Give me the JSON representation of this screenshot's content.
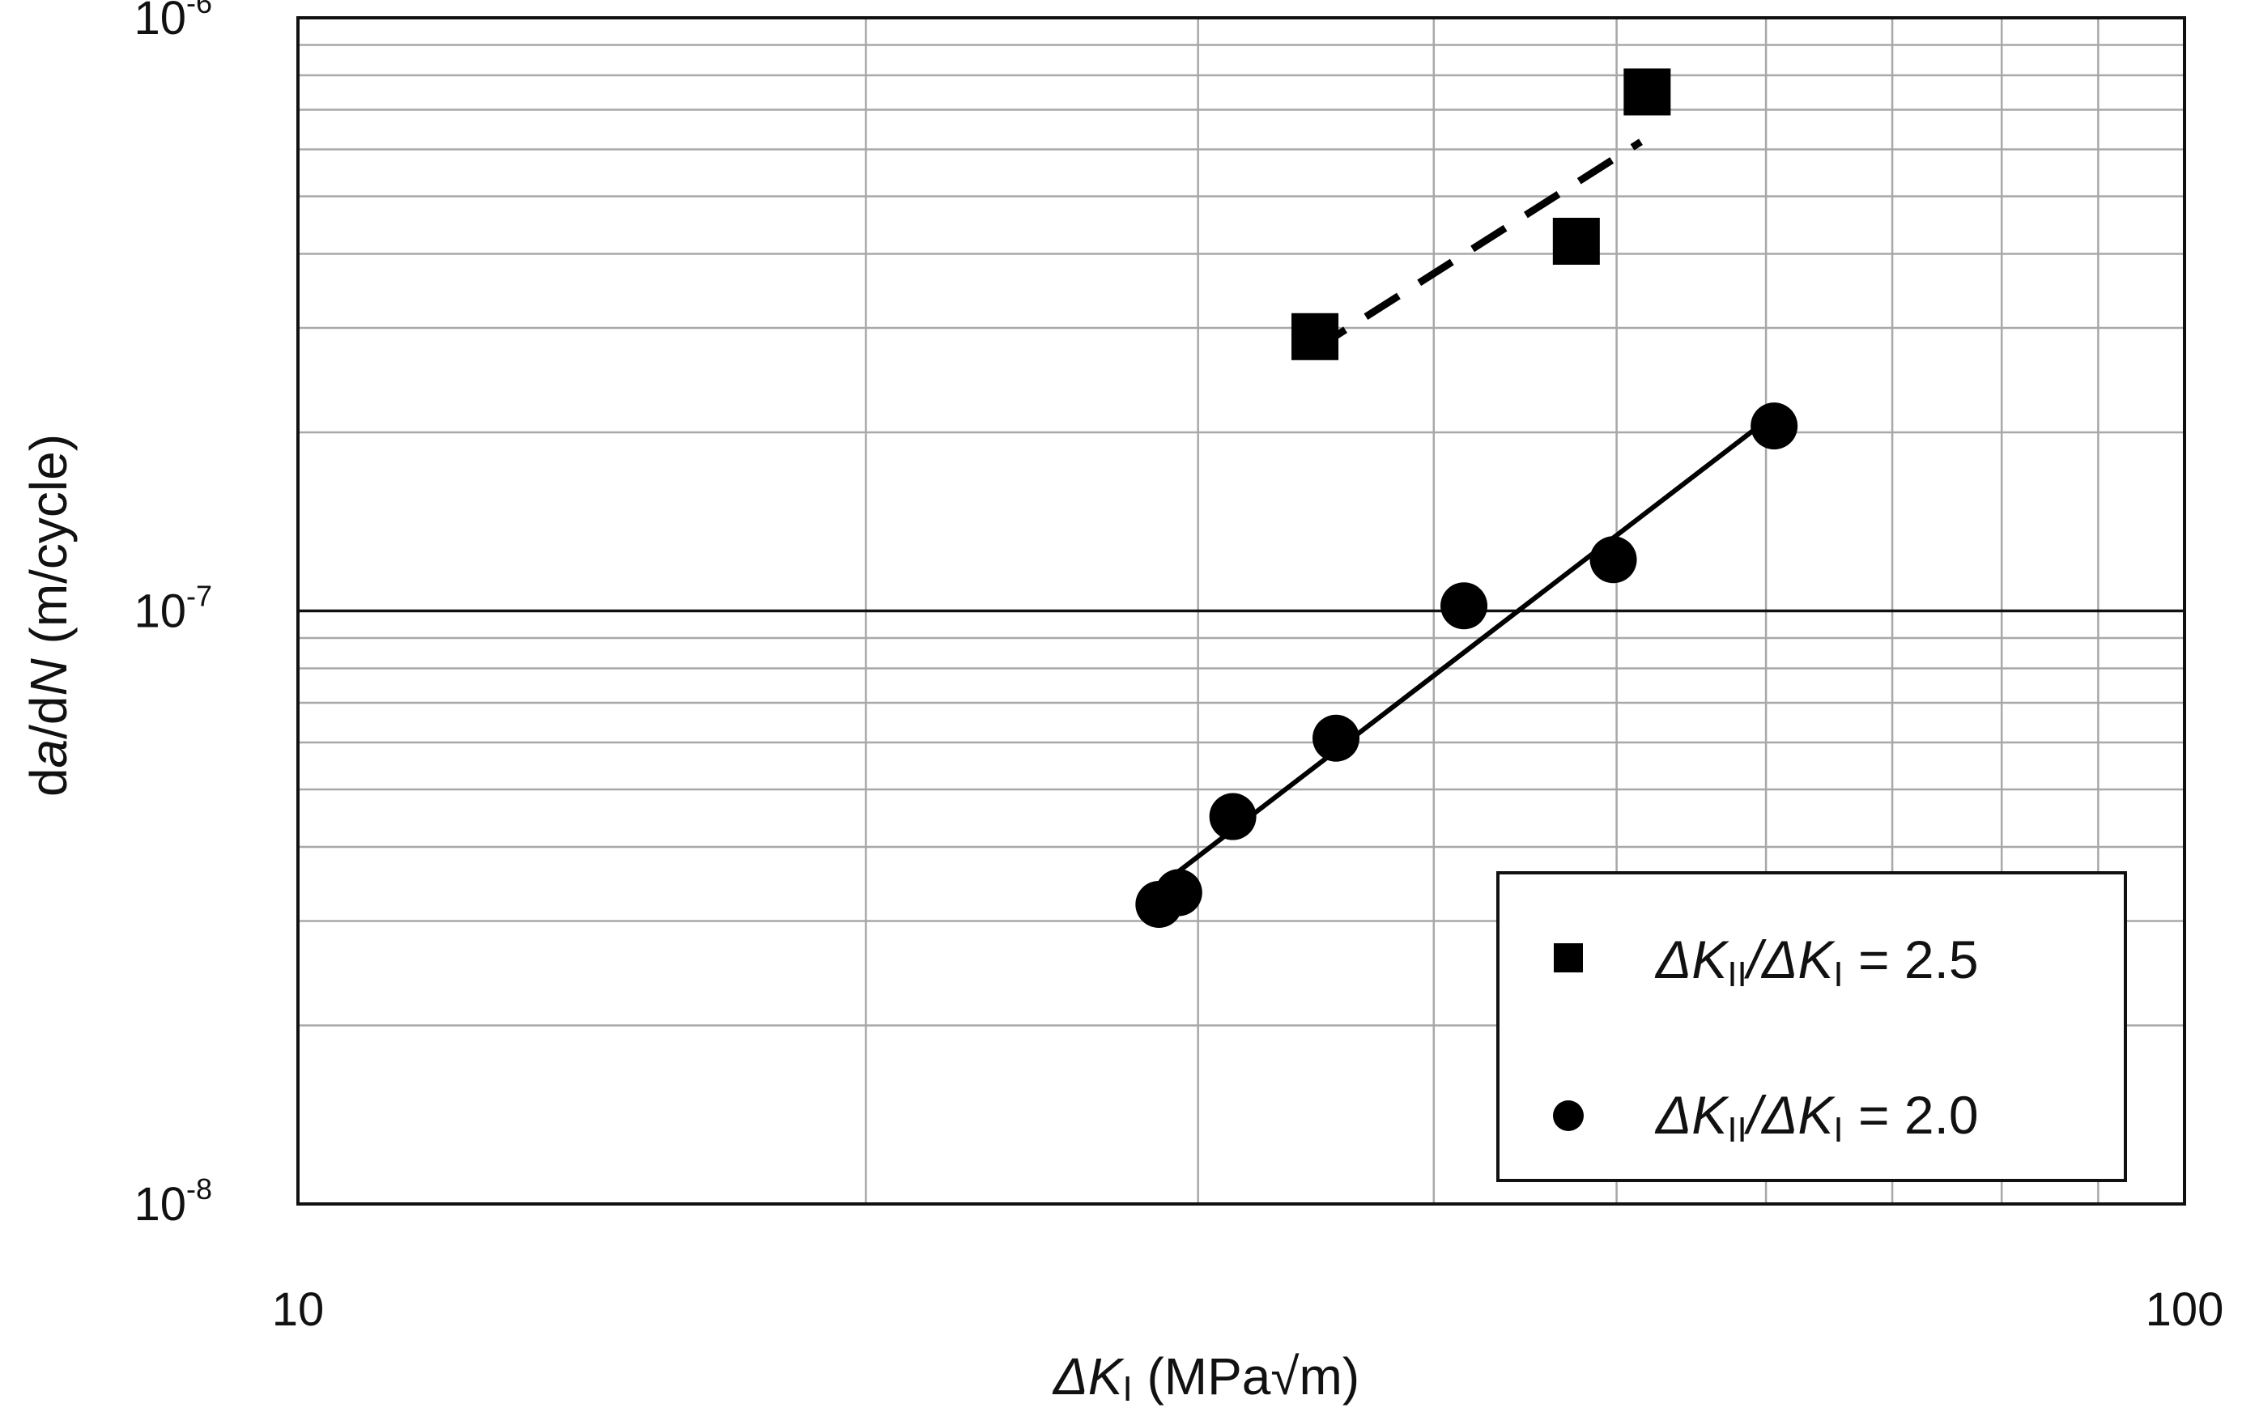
{
  "chart_data": {
    "type": "scatter",
    "title": "",
    "xscale": "log",
    "yscale": "log",
    "xlim": [
      10,
      100
    ],
    "ylim": [
      1e-08,
      1e-06
    ],
    "xticks": [
      {
        "value": 10,
        "label": "10"
      },
      {
        "value": 100,
        "label": "100"
      }
    ],
    "yticks": [
      {
        "value": 1e-08,
        "base": "10",
        "exp": "-8"
      },
      {
        "value": 1e-07,
        "base": "10",
        "exp": "-7"
      },
      {
        "value": 1e-06,
        "base": "10",
        "exp": "-6"
      }
    ],
    "xlabel": {
      "symbol": "ΔK",
      "subscript": "I",
      "units": "(MPa√m)"
    },
    "ylabel": {
      "d1": "d",
      "a": "a",
      "slash": "/d",
      "N": "N",
      "units": "(m/cycle)"
    },
    "grid": true,
    "legend_position": "bottom-right",
    "series": [
      {
        "name": "ΔKII/ΔKI = 2.5",
        "legend": {
          "p1": "ΔK",
          "s1": "II",
          "p2": "/ΔK",
          "s2": "I",
          "p3": " = 2.5"
        },
        "marker": "square",
        "fit": "dashed",
        "fit_range": [
          34.5,
          51.5
        ],
        "points": [
          {
            "x": 34.6,
            "y": 2.9e-07
          },
          {
            "x": 47.6,
            "y": 4.2e-07
          },
          {
            "x": 51.9,
            "y": 7.5e-07
          }
        ]
      },
      {
        "name": "ΔKII/ΔKI = 2.0",
        "legend": {
          "p1": "ΔK",
          "s1": "II",
          "p2": "/ΔK",
          "s2": "I",
          "p3": " = 2.0"
        },
        "marker": "circle",
        "fit": "solid",
        "fit_range": [
          28.6,
          60.6
        ],
        "points": [
          {
            "x": 28.6,
            "y": 3.2e-08
          },
          {
            "x": 29.3,
            "y": 3.35e-08
          },
          {
            "x": 31.3,
            "y": 4.5e-08
          },
          {
            "x": 35.5,
            "y": 6.1e-08
          },
          {
            "x": 41.5,
            "y": 1.02e-07
          },
          {
            "x": 49.8,
            "y": 1.22e-07
          },
          {
            "x": 60.6,
            "y": 2.05e-07
          }
        ]
      }
    ]
  }
}
